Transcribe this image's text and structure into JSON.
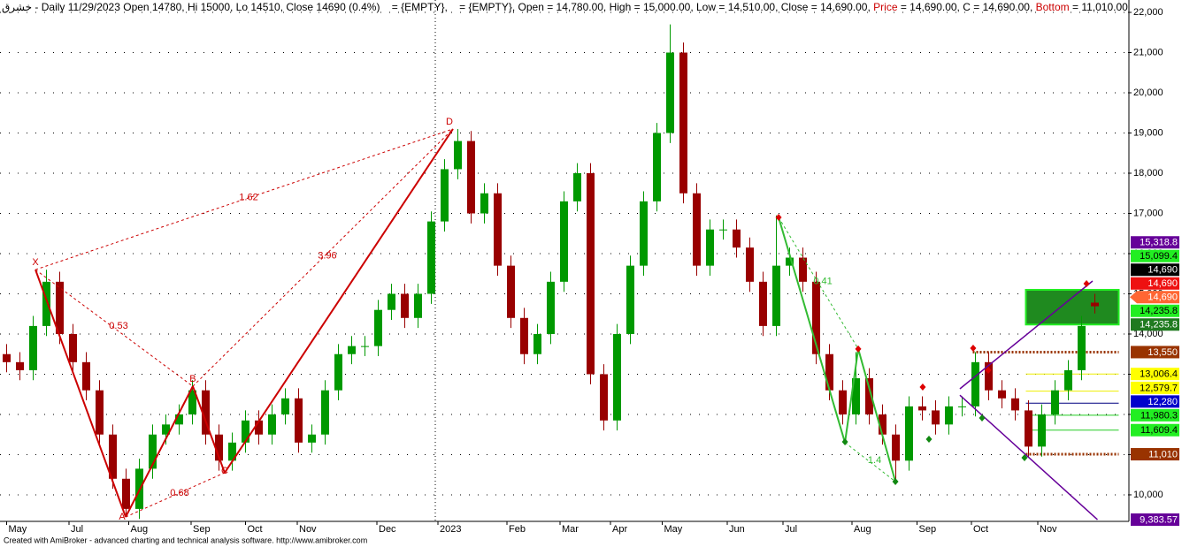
{
  "chart_data": {
    "type": "candlestick",
    "title_parts": [
      {
        "text": "خشرق - Daily 11/29/2023 Open 14780, Hi 15000, Lo 14510, Close 14690 (0.4%)    = {EMPTY},    = {EMPTY}, Open = 14,780.00, High = 15,000.00, Low = 14,510.00, Close = 14,690.00, ",
        "color": "#000000"
      },
      {
        "text": "Price",
        "color": "#cc0000"
      },
      {
        "text": " = 14,690.00, C = 14,690.00, ",
        "color": "#000000"
      },
      {
        "text": "Bottom",
        "color": "#cc0000"
      },
      {
        "text": " = 11,010.00",
        "color": "#000000"
      }
    ],
    "footer": "Created with AmiBroker - advanced charting and technical analysis software. http://www.amibroker.com",
    "up_color": "#009900",
    "down_color": "#990000",
    "candles": [
      [
        13500,
        13750,
        13050,
        13300
      ],
      [
        13300,
        13550,
        12850,
        13100
      ],
      [
        13100,
        14450,
        12850,
        14200
      ],
      [
        14200,
        15600,
        13950,
        15300
      ],
      [
        15300,
        15550,
        13750,
        14000
      ],
      [
        14000,
        14250,
        13050,
        13300
      ],
      [
        13300,
        13550,
        12350,
        12600
      ],
      [
        12600,
        12850,
        11250,
        11500
      ],
      [
        11500,
        11750,
        10150,
        10400
      ],
      [
        10400,
        10650,
        9450,
        9650
      ],
      [
        9650,
        10900,
        9400,
        10650
      ],
      [
        10650,
        11750,
        10400,
        11500
      ],
      [
        11500,
        12000,
        11250,
        11750
      ],
      [
        11750,
        12250,
        11500,
        12000
      ],
      [
        12000,
        12850,
        11750,
        12600
      ],
      [
        12600,
        12850,
        11250,
        11500
      ],
      [
        11500,
        11750,
        10600,
        10850
      ],
      [
        10850,
        11550,
        10600,
        11300
      ],
      [
        11300,
        12100,
        11050,
        11850
      ],
      [
        11850,
        12100,
        11250,
        11500
      ],
      [
        11500,
        12250,
        11250,
        12000
      ],
      [
        12000,
        12650,
        11750,
        12400
      ],
      [
        12400,
        12650,
        11050,
        11300
      ],
      [
        11300,
        11750,
        11050,
        11500
      ],
      [
        11500,
        12850,
        11250,
        12600
      ],
      [
        12600,
        13750,
        12350,
        13500
      ],
      [
        13500,
        13950,
        13250,
        13700
      ],
      [
        13700,
        13950,
        13450,
        13700
      ],
      [
        13700,
        14850,
        13450,
        14600
      ],
      [
        14600,
        15250,
        14350,
        15000
      ],
      [
        15000,
        15250,
        14150,
        14400
      ],
      [
        14400,
        15250,
        14150,
        15000
      ],
      [
        15000,
        17050,
        14750,
        16800
      ],
      [
        16800,
        18350,
        16550,
        18100
      ],
      [
        18100,
        19100,
        17850,
        18800
      ],
      [
        18800,
        19050,
        16750,
        17000
      ],
      [
        17000,
        17750,
        16750,
        17500
      ],
      [
        17500,
        17750,
        15450,
        15700
      ],
      [
        15700,
        15950,
        14150,
        14400
      ],
      [
        14400,
        14650,
        13250,
        13500
      ],
      [
        13500,
        14250,
        13250,
        14000
      ],
      [
        14000,
        15550,
        13750,
        15300
      ],
      [
        15300,
        17550,
        15050,
        17300
      ],
      [
        17300,
        18250,
        17050,
        18000
      ],
      [
        18000,
        18250,
        12750,
        13000
      ],
      [
        13000,
        13250,
        11600,
        11850
      ],
      [
        11850,
        14250,
        11600,
        14000
      ],
      [
        14000,
        15950,
        13750,
        15700
      ],
      [
        15700,
        17550,
        15450,
        17300
      ],
      [
        17300,
        19250,
        17050,
        19000
      ],
      [
        19000,
        21700,
        18750,
        21000
      ],
      [
        21000,
        21250,
        17250,
        17500
      ],
      [
        17500,
        17750,
        15450,
        15700
      ],
      [
        15700,
        16850,
        15450,
        16600
      ],
      [
        16600,
        16850,
        16350,
        16600
      ],
      [
        16600,
        16850,
        15900,
        16150
      ],
      [
        16150,
        16400,
        15050,
        15300
      ],
      [
        15300,
        15550,
        13950,
        14200
      ],
      [
        14200,
        16950,
        13950,
        15700
      ],
      [
        15700,
        16150,
        15450,
        15900
      ],
      [
        15900,
        16150,
        15050,
        15300
      ],
      [
        15300,
        15550,
        13250,
        13500
      ],
      [
        13500,
        13750,
        12350,
        12600
      ],
      [
        12600,
        12850,
        11750,
        12000
      ],
      [
        12000,
        13550,
        11750,
        12900
      ],
      [
        12900,
        13150,
        11750,
        12000
      ],
      [
        12000,
        12250,
        11250,
        11500
      ],
      [
        11500,
        11750,
        10300,
        10850
      ],
      [
        10850,
        12450,
        10600,
        12200
      ],
      [
        12200,
        12450,
        11850,
        12100
      ],
      [
        12100,
        12350,
        11500,
        11750
      ],
      [
        11750,
        12450,
        11500,
        12200
      ],
      [
        12200,
        12450,
        11950,
        12200
      ],
      [
        12200,
        13550,
        11950,
        13300
      ],
      [
        13300,
        13550,
        12350,
        12600
      ],
      [
        12600,
        12850,
        12150,
        12400
      ],
      [
        12400,
        12650,
        11850,
        12100
      ],
      [
        12100,
        12350,
        10950,
        11200
      ],
      [
        11200,
        12250,
        10950,
        12000
      ],
      [
        12000,
        12850,
        11750,
        12600
      ],
      [
        12600,
        13350,
        12350,
        13100
      ],
      [
        13100,
        14450,
        12850,
        14200
      ],
      [
        14780,
        15000,
        14510,
        14690
      ]
    ],
    "xlim": [
      -0.5,
      84.5
    ],
    "xticks": [
      {
        "value": 0,
        "label": "May"
      },
      {
        "value": 4.7,
        "label": "Jul"
      },
      {
        "value": 9.2,
        "label": "Aug"
      },
      {
        "value": 13.9,
        "label": "Sep"
      },
      {
        "value": 18,
        "label": "Oct"
      },
      {
        "value": 21.9,
        "label": "Nov"
      },
      {
        "value": 27.9,
        "label": "Dec"
      },
      {
        "value": 32.5,
        "label": "2023"
      },
      {
        "value": 37.7,
        "label": "Feb"
      },
      {
        "value": 41.7,
        "label": "Mar"
      },
      {
        "value": 45.5,
        "label": "Apr"
      },
      {
        "value": 49.4,
        "label": "May"
      },
      {
        "value": 54.3,
        "label": "Jun"
      },
      {
        "value": 58.5,
        "label": "Jul"
      },
      {
        "value": 63.7,
        "label": "Aug"
      },
      {
        "value": 68.6,
        "label": "Sep"
      },
      {
        "value": 72.7,
        "label": "Oct"
      },
      {
        "value": 77.7,
        "label": "Nov"
      }
    ],
    "year_start": 32.3,
    "ylim": [
      9340,
      22308
    ],
    "yticks": [
      {
        "value": 10000,
        "label": "10,000"
      },
      {
        "value": 11000,
        "label": "11,000"
      },
      {
        "value": 12000,
        "label": "12,000"
      },
      {
        "value": 13000,
        "label": "13,000"
      },
      {
        "value": 14000,
        "label": "14,000"
      },
      {
        "value": 15000,
        "label": "15,000"
      },
      {
        "value": 16000,
        "label": "16,000"
      },
      {
        "value": 17000,
        "label": "17,000"
      },
      {
        "value": 18000,
        "label": "18,000"
      },
      {
        "value": 19000,
        "label": "19,000"
      },
      {
        "value": 20000,
        "label": "20,000"
      },
      {
        "value": 21000,
        "label": "21,000"
      },
      {
        "value": 22000,
        "label": "22,000"
      }
    ],
    "grid": true,
    "pattern1": {
      "color": "#cc0000",
      "points": [
        {
          "label": "X",
          "x": 2.17,
          "y": 15600
        },
        {
          "label": "A",
          "x": 8.97,
          "y": 9450
        },
        {
          "label": "B",
          "x": 14.03,
          "y": 12700
        },
        {
          "label": "C",
          "x": 16.43,
          "y": 10550
        },
        {
          "label": "D",
          "x": 33.63,
          "y": 19100
        }
      ],
      "ratios": [
        0.53,
        0.68,
        1.62,
        3.96
      ]
    },
    "pattern2": {
      "color": "#33bb33",
      "points": [
        {
          "x": 58.17,
          "y": 16900
        },
        {
          "x": 63.17,
          "y": 11300
        },
        {
          "x": 64.17,
          "y": 13630
        },
        {
          "x": 66.97,
          "y": 10330
        }
      ],
      "ratios": [
        0.41,
        1.4
      ]
    },
    "markers": [
      {
        "x": 58.17,
        "y": 16900,
        "color": "#dd0000"
      },
      {
        "x": 64.17,
        "y": 13630,
        "color": "#dd0000"
      },
      {
        "x": 69.03,
        "y": 12681,
        "color": "#dd0000"
      },
      {
        "x": 72.83,
        "y": 13648,
        "color": "#dd0000"
      },
      {
        "x": 73.97,
        "y": 13099,
        "color": "#dd0000"
      },
      {
        "x": 81.37,
        "y": 15253,
        "color": "#dd0000"
      },
      {
        "x": 63.17,
        "y": 11319,
        "color": "#118811"
      },
      {
        "x": 66.97,
        "y": 10330,
        "color": "#118811"
      },
      {
        "x": 69.5,
        "y": 11385,
        "color": "#118811"
      },
      {
        "x": 73.5,
        "y": 11912,
        "color": "#118811"
      },
      {
        "x": 76.7,
        "y": 10923,
        "color": "#118811"
      }
    ],
    "channels": [
      {
        "color": "#660099",
        "x": [
          71.83,
          81.83
        ],
        "y": [
          12637,
          15318.8
        ]
      },
      {
        "color": "#660099",
        "x": [
          71.83,
          82.2
        ],
        "y": [
          12480,
          9383.57
        ]
      }
    ],
    "zone": {
      "x": [
        76.8,
        83.8
      ],
      "low": 14235.8,
      "high": 15099.4,
      "color": "#1f8a1f",
      "border": "#22ee22"
    },
    "levels": [
      {
        "value": 13550,
        "color": "#993300",
        "width": 3,
        "dash": "2 2",
        "x": [
          72.8,
          83.8
        ]
      },
      {
        "value": 13006.4,
        "color": "#eeee00",
        "width": 1,
        "dash": "",
        "x": [
          76.8,
          83.8
        ]
      },
      {
        "value": 12579.7,
        "color": "#eeee00",
        "width": 1,
        "dash": "",
        "x": [
          76.8,
          83.8
        ]
      },
      {
        "value": 12280,
        "color": "#000080",
        "width": 1,
        "dash": "",
        "x": [
          76.8,
          83.8
        ]
      },
      {
        "value": 11980.3,
        "color": "#22cc22",
        "width": 1,
        "dash": "",
        "x": [
          76.8,
          83.8
        ]
      },
      {
        "value": 11609.4,
        "color": "#22cc22",
        "width": 1,
        "dash": "",
        "x": [
          76.8,
          83.8
        ]
      },
      {
        "value": 11010,
        "color": "#993300",
        "width": 3,
        "dash": "2 2",
        "x": [
          76.8,
          83.8
        ]
      }
    ],
    "price_labels": [
      {
        "value": 15318.8,
        "label": "15,318.8",
        "color": "#660099",
        "text_color": "#ffffff"
      },
      {
        "value": 15099.4,
        "label": "15,099.4",
        "color": "#22ee22",
        "text_color": "#000000"
      },
      {
        "value": 14690,
        "label": "14,690",
        "color": "#000000",
        "text_color": "#ffffff"
      },
      {
        "value": 14690,
        "label": "14,690",
        "color": "#ee1111",
        "text_color": "#ffffff"
      },
      {
        "value": 14690,
        "label": "14,690",
        "color": "#ff6633",
        "text_color": "#ffffff",
        "arrow": true
      },
      {
        "value": 14235.8,
        "label": "14,235.8",
        "color": "#22ee22",
        "text_color": "#000000"
      },
      {
        "value": 14235.8,
        "label": "14,235.8",
        "color": "#1f7a1f",
        "text_color": "#ffffff"
      },
      {
        "value": 13550,
        "label": "13,550",
        "color": "#993300",
        "text_color": "#ffffff"
      },
      {
        "value": 13006.4,
        "label": "13,006.4",
        "color": "#ffff00",
        "text_color": "#000000"
      },
      {
        "value": 12579.7,
        "label": "12,579.7",
        "color": "#ffff00",
        "text_color": "#000000"
      },
      {
        "value": 12280,
        "label": "12,280",
        "color": "#0000cc",
        "text_color": "#ffffff"
      },
      {
        "value": 11980.3,
        "label": "11,980.3",
        "color": "#22ee22",
        "text_color": "#000000"
      },
      {
        "value": 11609.4,
        "label": "11,609.4",
        "color": "#22ee22",
        "text_color": "#000000"
      },
      {
        "value": 11010,
        "label": "11,010",
        "color": "#993300",
        "text_color": "#ffffff"
      },
      {
        "value": 9383.57,
        "label": "9,383.57",
        "color": "#660099",
        "text_color": "#ffffff"
      }
    ]
  }
}
